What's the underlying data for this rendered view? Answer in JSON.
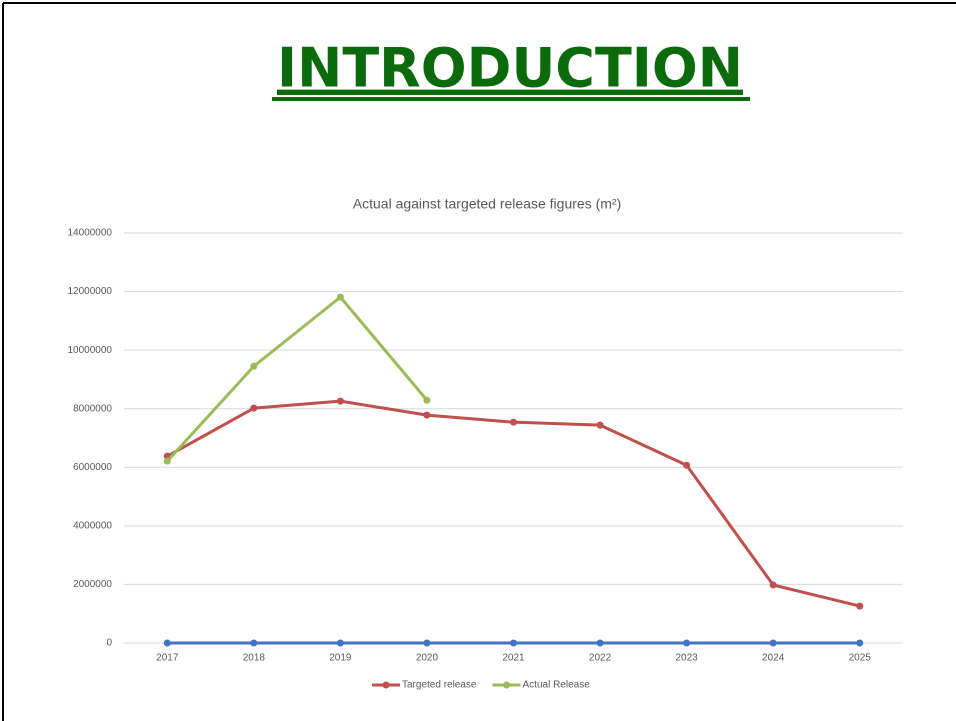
{
  "slide_title": "INTRODUCTION",
  "chart_data": {
    "type": "line",
    "title": "Actual against targeted release figures (m²)",
    "categories": [
      "2017",
      "2018",
      "2019",
      "2020",
      "2021",
      "2022",
      "2023",
      "2024",
      "2025"
    ],
    "series": [
      {
        "color": "#4472c4",
        "values": [
          0,
          0,
          0,
          0,
          0,
          0,
          0,
          0,
          0
        ]
      },
      {
        "name": "Targeted release",
        "color": "#c0504d",
        "values": [
          6380000,
          8020000,
          8260000,
          7780000,
          7540000,
          7440000,
          6070000,
          1980000,
          1260000
        ]
      },
      {
        "name": "Actual Release",
        "color": "#9bbb59",
        "values": [
          6210000,
          9450000,
          11810000,
          8290000,
          null,
          null,
          null,
          null,
          null
        ]
      }
    ],
    "ylim": [
      0,
      14000000
    ],
    "yticks": [
      0,
      2000000,
      4000000,
      6000000,
      8000000,
      10000000,
      12000000,
      14000000
    ],
    "grid": true,
    "legend": "bottom"
  }
}
